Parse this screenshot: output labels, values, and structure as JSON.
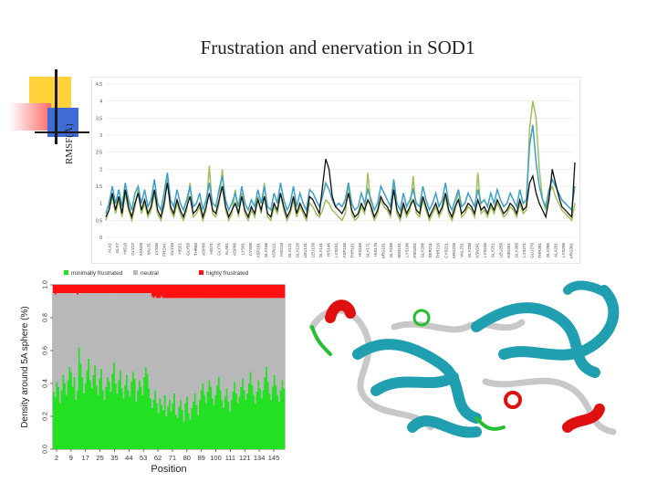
{
  "slide": {
    "title": "Frustration and enervation in SOD1"
  },
  "colors": {
    "black": "#111111",
    "blue": "#3aa0c8",
    "green": "#9fbf5a",
    "frust_min": "#22e022",
    "neutral": "#b8b8b8",
    "frust_high": "#ff1010",
    "deco_yellow": "#ffd23a",
    "deco_blue": "#3f6bd6",
    "deco_red": "#ff6a6a"
  },
  "chart_data": [
    {
      "type": "line",
      "ylabel": "RMSF(Å)",
      "ylim": [
        0,
        4.5
      ],
      "y_ticks": [
        "0",
        "0.5",
        "1",
        "1.5",
        "2",
        "2.5",
        "3",
        "3.5",
        "4",
        "4.5"
      ],
      "x_tick_labels": [
        "ALA1",
        "GLY7",
        "HIS16",
        "GLY22",
        "ASN26",
        "VAL31",
        "LYS36",
        "PRO41",
        "GLY46",
        "HIS51",
        "GLY56",
        "THR60",
        "ASP66",
        "HIS71",
        "GLY76",
        "ALA81",
        "ASP86",
        "LYS91",
        "CYS96",
        "ASP101",
        "GLY106",
        "ASN111",
        "HIS116",
        "GLY121",
        "GLY126",
        "LEU131",
        "LEU136",
        "GLY141",
        "HIS146",
        "LYS151",
        "ASP156",
        "THR161",
        "HIS166",
        "GLY171",
        "HIS176",
        "ARG181",
        "GLY186",
        "SER191",
        "LYS196",
        "ASN201",
        "GLY206",
        "SER211",
        "THR216",
        "CYS221",
        "ARG226",
        "VAL231",
        "GLY236",
        "ASN241",
        "LYS246",
        "GLY251",
        "LEU256",
        "ASN261",
        "GLY266",
        "LYS271",
        "GLU276",
        "THR281",
        "GLY286",
        "ALA291",
        "LYS296",
        "ARG301"
      ],
      "series": [
        {
          "color": "black",
          "values": [
            0.6,
            0.8,
            1.3,
            0.8,
            1.2,
            0.7,
            1.4,
            0.9,
            0.6,
            1.0,
            1.3,
            0.8,
            1.1,
            0.7,
            0.9,
            1.4,
            0.8,
            0.6,
            1.0,
            1.6,
            0.9,
            0.7,
            1.1,
            0.8,
            0.6,
            0.9,
            1.2,
            0.7,
            0.8,
            1.0,
            0.6,
            0.9,
            1.3,
            0.8,
            0.7,
            1.1,
            1.5,
            0.9,
            0.6,
            0.8,
            1.0,
            0.7,
            1.2,
            0.8,
            0.6,
            0.9,
            0.7,
            1.1,
            0.8,
            1.2,
            0.7,
            0.6,
            1.0,
            0.8,
            1.3,
            0.9,
            0.6,
            0.8,
            1.2,
            0.7,
            1.0,
            0.8,
            0.6,
            1.2,
            1.1,
            0.9,
            0.7,
            1.5,
            2.3,
            2.0,
            1.2,
            0.9,
            0.8,
            0.7,
            0.9,
            1.3,
            0.8,
            0.6,
            0.7,
            1.0,
            0.8,
            1.1,
            0.9,
            0.6,
            0.8,
            1.2,
            1.0,
            0.9,
            0.7,
            1.4,
            0.8,
            0.6,
            1.0,
            0.7,
            0.9,
            1.1,
            0.8,
            0.7,
            1.2,
            0.9,
            0.6,
            0.8,
            1.0,
            0.7,
            0.9,
            1.3,
            0.8,
            0.6,
            0.9,
            1.1,
            0.7,
            0.8,
            1.0,
            0.9,
            0.7,
            1.1,
            0.8,
            0.9,
            0.7,
            1.0,
            0.8,
            1.1,
            0.9,
            0.7,
            0.8,
            1.0,
            0.9,
            0.7,
            1.1,
            0.8,
            0.9,
            1.6,
            1.8,
            1.3,
            1.0,
            0.8,
            0.6,
            1.1,
            2.0,
            1.6,
            1.2,
            0.9,
            0.8,
            0.7,
            0.6,
            2.2
          ]
        },
        {
          "color": "blue",
          "values": [
            0.7,
            1.0,
            1.5,
            1.0,
            1.4,
            0.9,
            1.6,
            1.1,
            0.8,
            1.3,
            1.5,
            1.0,
            1.4,
            0.9,
            1.1,
            1.7,
            1.0,
            0.8,
            1.3,
            1.9,
            1.1,
            0.9,
            1.4,
            1.0,
            0.8,
            1.1,
            1.5,
            0.9,
            1.0,
            1.3,
            0.8,
            1.1,
            1.6,
            1.0,
            0.9,
            1.4,
            1.8,
            1.1,
            0.8,
            1.0,
            1.3,
            0.9,
            1.5,
            1.0,
            0.8,
            1.1,
            0.9,
            1.4,
            1.0,
            1.5,
            0.9,
            0.8,
            1.3,
            1.0,
            1.6,
            1.1,
            0.8,
            1.0,
            1.5,
            0.9,
            1.3,
            1.0,
            0.8,
            1.4,
            1.3,
            1.1,
            0.9,
            1.2,
            1.6,
            1.4,
            1.1,
            0.9,
            1.0,
            0.9,
            1.1,
            1.6,
            1.0,
            0.8,
            0.9,
            1.3,
            1.0,
            1.4,
            1.1,
            0.8,
            1.0,
            1.5,
            1.3,
            1.1,
            0.9,
            1.7,
            1.0,
            0.8,
            1.3,
            0.9,
            1.1,
            1.4,
            1.0,
            0.9,
            1.5,
            1.1,
            0.8,
            1.0,
            1.3,
            0.9,
            1.1,
            1.6,
            1.0,
            0.8,
            1.1,
            1.4,
            0.9,
            1.0,
            1.3,
            1.1,
            0.9,
            1.4,
            1.0,
            1.1,
            0.9,
            1.3,
            1.0,
            1.4,
            1.1,
            0.9,
            1.0,
            1.3,
            1.1,
            0.9,
            1.4,
            1.0,
            1.1,
            2.7,
            3.3,
            2.2,
            1.5,
            1.1,
            0.9,
            1.4,
            1.7,
            1.5,
            1.3,
            1.1,
            1.0,
            0.9,
            0.8,
            1.5
          ]
        },
        {
          "color": "green",
          "values": [
            0.5,
            0.8,
            1.2,
            0.7,
            1.1,
            0.6,
            1.3,
            0.8,
            0.5,
            0.9,
            1.4,
            0.7,
            1.0,
            0.6,
            0.8,
            1.3,
            0.7,
            0.5,
            0.9,
            1.7,
            0.8,
            0.6,
            1.0,
            0.7,
            0.5,
            0.8,
            1.6,
            0.6,
            0.7,
            0.9,
            0.5,
            0.8,
            2.1,
            0.7,
            0.6,
            1.0,
            2.0,
            0.8,
            0.5,
            0.7,
            1.4,
            0.6,
            1.3,
            0.7,
            0.5,
            0.8,
            0.6,
            1.2,
            0.7,
            1.6,
            0.6,
            0.5,
            0.9,
            0.7,
            1.3,
            0.8,
            0.5,
            0.7,
            1.1,
            0.6,
            0.9,
            0.7,
            0.5,
            1.0,
            0.9,
            0.7,
            0.6,
            0.8,
            1.1,
            1.0,
            0.8,
            0.7,
            0.6,
            0.5,
            0.7,
            1.6,
            0.7,
            0.5,
            0.6,
            0.9,
            0.7,
            1.9,
            0.8,
            0.5,
            0.7,
            1.1,
            0.9,
            0.8,
            0.6,
            1.5,
            0.7,
            0.5,
            0.9,
            0.6,
            0.8,
            1.8,
            0.7,
            0.6,
            1.1,
            0.8,
            0.5,
            0.7,
            0.9,
            0.6,
            0.8,
            1.2,
            0.7,
            0.5,
            0.8,
            1.4,
            0.6,
            0.7,
            0.9,
            0.8,
            0.6,
            1.9,
            0.7,
            0.8,
            0.6,
            0.9,
            0.7,
            1.0,
            0.8,
            0.6,
            0.7,
            0.9,
            0.8,
            0.6,
            1.0,
            0.7,
            0.8,
            3.2,
            4.0,
            3.5,
            2.0,
            1.1,
            0.8,
            1.3,
            1.5,
            1.2,
            1.0,
            0.8,
            0.7,
            0.6,
            0.5,
            1.0
          ]
        }
      ]
    },
    {
      "type": "bar",
      "ylabel": "Density around 5A sphere (%)",
      "xlabel": "Position",
      "ylim": [
        0,
        1
      ],
      "y_ticks": [
        "0.0",
        "0.2",
        "0.4",
        "0.6",
        "0.8",
        "1.0"
      ],
      "x_ticks": [
        "2",
        "9",
        "17",
        "25",
        "35",
        "44",
        "53",
        "62",
        "71",
        "80",
        "89",
        "100",
        "111",
        "121",
        "134",
        "145"
      ],
      "legend": [
        "minimally frustrated",
        "neutral",
        "highly frustrated"
      ],
      "legend_position": "top",
      "series": [
        {
          "name": "minimally frustrated",
          "values": [
            0.35,
            0.32,
            0.41,
            0.38,
            0.28,
            0.36,
            0.45,
            0.4,
            0.33,
            0.42,
            0.5,
            0.47,
            0.38,
            0.44,
            0.3,
            0.36,
            0.62,
            0.52,
            0.44,
            0.34,
            0.4,
            0.48,
            0.55,
            0.42,
            0.37,
            0.45,
            0.51,
            0.39,
            0.33,
            0.43,
            0.49,
            0.36,
            0.3,
            0.38,
            0.44,
            0.41,
            0.35,
            0.46,
            0.53,
            0.4,
            0.34,
            0.42,
            0.48,
            0.37,
            0.31,
            0.39,
            0.45,
            0.36,
            0.32,
            0.41,
            0.47,
            0.43,
            0.29,
            0.36,
            0.42,
            0.38,
            0.33,
            0.44,
            0.5,
            0.46,
            0.37,
            0.31,
            0.25,
            0.3,
            0.36,
            0.28,
            0.22,
            0.31,
            0.27,
            0.24,
            0.33,
            0.2,
            0.26,
            0.3,
            0.23,
            0.28,
            0.34,
            0.21,
            0.19,
            0.26,
            0.3,
            0.24,
            0.17,
            0.28,
            0.32,
            0.22,
            0.18,
            0.25,
            0.29,
            0.34,
            0.27,
            0.21,
            0.3,
            0.36,
            0.4,
            0.33,
            0.28,
            0.35,
            0.42,
            0.38,
            0.31,
            0.27,
            0.33,
            0.39,
            0.44,
            0.36,
            0.3,
            0.25,
            0.32,
            0.37,
            0.29,
            0.23,
            0.3,
            0.35,
            0.41,
            0.34,
            0.28,
            0.32,
            0.38,
            0.43,
            0.36,
            0.3,
            0.34,
            0.4,
            0.47,
            0.39,
            0.33,
            0.28,
            0.35,
            0.42,
            0.37,
            0.31,
            0.36,
            0.44,
            0.5,
            0.41,
            0.34,
            0.3,
            0.38,
            0.45,
            0.39,
            0.33,
            0.29,
            0.36,
            0.42,
            0.37
          ]
        },
        {
          "name": "neutral",
          "values": [
            0.6,
            0.62,
            0.54,
            0.57,
            0.67,
            0.59,
            0.5,
            0.55,
            0.62,
            0.53,
            0.45,
            0.48,
            0.57,
            0.51,
            0.65,
            0.58,
            0.33,
            0.43,
            0.51,
            0.61,
            0.55,
            0.47,
            0.4,
            0.53,
            0.58,
            0.5,
            0.44,
            0.56,
            0.62,
            0.52,
            0.46,
            0.59,
            0.65,
            0.57,
            0.51,
            0.54,
            0.6,
            0.49,
            0.42,
            0.55,
            0.61,
            0.53,
            0.47,
            0.58,
            0.64,
            0.56,
            0.5,
            0.59,
            0.63,
            0.54,
            0.48,
            0.52,
            0.66,
            0.59,
            0.53,
            0.57,
            0.62,
            0.51,
            0.45,
            0.49,
            0.58,
            0.64,
            0.68,
            0.62,
            0.57,
            0.64,
            0.7,
            0.61,
            0.66,
            0.68,
            0.59,
            0.72,
            0.66,
            0.62,
            0.69,
            0.64,
            0.58,
            0.71,
            0.73,
            0.66,
            0.62,
            0.68,
            0.75,
            0.64,
            0.6,
            0.7,
            0.74,
            0.67,
            0.63,
            0.58,
            0.65,
            0.71,
            0.62,
            0.56,
            0.52,
            0.59,
            0.64,
            0.57,
            0.5,
            0.54,
            0.61,
            0.65,
            0.59,
            0.53,
            0.48,
            0.56,
            0.62,
            0.67,
            0.6,
            0.55,
            0.63,
            0.69,
            0.62,
            0.57,
            0.51,
            0.58,
            0.64,
            0.6,
            0.54,
            0.49,
            0.56,
            0.62,
            0.58,
            0.52,
            0.45,
            0.53,
            0.59,
            0.64,
            0.57,
            0.5,
            0.55,
            0.61,
            0.56,
            0.48,
            0.42,
            0.51,
            0.58,
            0.62,
            0.54,
            0.47,
            0.53,
            0.59,
            0.63,
            0.56,
            0.5,
            0.55
          ]
        },
        {
          "name": "highly frustrated",
          "values": [
            0.05,
            0.06,
            0.05,
            0.05,
            0.05,
            0.05,
            0.05,
            0.05,
            0.05,
            0.05,
            0.05,
            0.05,
            0.05,
            0.05,
            0.05,
            0.06,
            0.05,
            0.05,
            0.05,
            0.05,
            0.05,
            0.05,
            0.05,
            0.05,
            0.05,
            0.05,
            0.05,
            0.05,
            0.05,
            0.05,
            0.05,
            0.05,
            0.05,
            0.05,
            0.05,
            0.05,
            0.05,
            0.05,
            0.05,
            0.05,
            0.05,
            0.05,
            0.05,
            0.05,
            0.05,
            0.05,
            0.05,
            0.05,
            0.05,
            0.05,
            0.05,
            0.05,
            0.05,
            0.05,
            0.05,
            0.05,
            0.05,
            0.05,
            0.05,
            0.05,
            0.05,
            0.05,
            0.07,
            0.08,
            0.07,
            0.08,
            0.08,
            0.08,
            0.07,
            0.08,
            0.08,
            0.08,
            0.08,
            0.08,
            0.08,
            0.08,
            0.08,
            0.08,
            0.08,
            0.08,
            0.08,
            0.08,
            0.08,
            0.08,
            0.08,
            0.08,
            0.08,
            0.08,
            0.08,
            0.08,
            0.08,
            0.08,
            0.08,
            0.08,
            0.08,
            0.08,
            0.08,
            0.08,
            0.08,
            0.08,
            0.08,
            0.08,
            0.08,
            0.08,
            0.08,
            0.08,
            0.08,
            0.08,
            0.08,
            0.08,
            0.08,
            0.08,
            0.08,
            0.08,
            0.08,
            0.08,
            0.08,
            0.08,
            0.08,
            0.08,
            0.08,
            0.08,
            0.08,
            0.08,
            0.08,
            0.08,
            0.08,
            0.08,
            0.08,
            0.08,
            0.08,
            0.08,
            0.08,
            0.08,
            0.08,
            0.08,
            0.08,
            0.08,
            0.08,
            0.08,
            0.08,
            0.08,
            0.08,
            0.08
          ]
        }
      ]
    }
  ]
}
